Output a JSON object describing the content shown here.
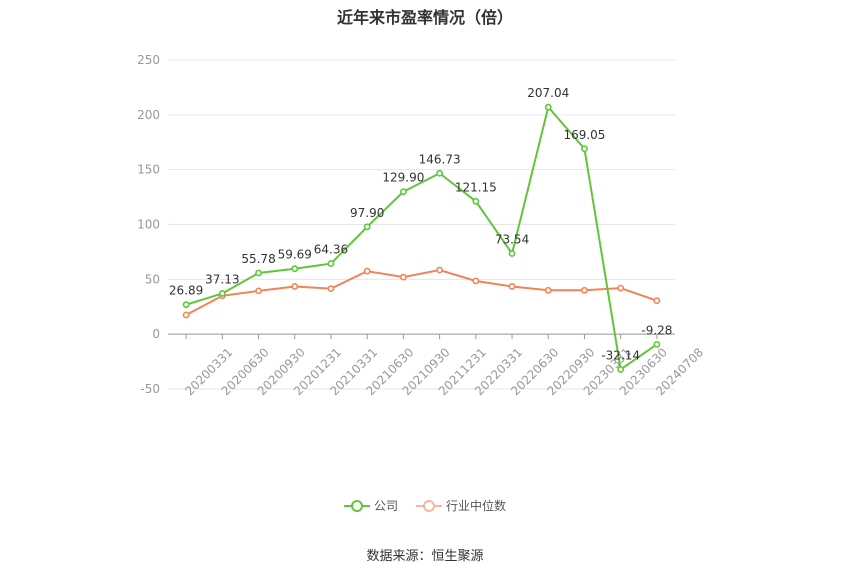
{
  "chart_data": {
    "type": "line",
    "title": "近年来市盈率情况（倍）",
    "x": [
      "20200331",
      "20200630",
      "20200930",
      "20201231",
      "20210331",
      "20210630",
      "20210930",
      "20211231",
      "20220331",
      "20220630",
      "20220930",
      "20230331",
      "20230630",
      "20240708"
    ],
    "series": [
      {
        "name": "公司",
        "color": "#5ec639",
        "values": [
          26.89,
          37.13,
          55.78,
          59.69,
          64.36,
          97.9,
          129.9,
          146.73,
          121.15,
          73.54,
          207.04,
          169.05,
          -32.14,
          -9.28
        ],
        "labels": [
          "26.89",
          "37.13",
          "55.78",
          "59.69",
          "64.36",
          "97.90",
          "129.90",
          "146.73",
          "121.15",
          "73.54",
          "207.04",
          "169.05",
          "-32.14",
          "-9.28"
        ]
      },
      {
        "name": "行业中位数",
        "color": "#f08454",
        "values": [
          17.5,
          35.0,
          39.5,
          43.5,
          41.5,
          57.5,
          52.0,
          58.5,
          48.5,
          43.5,
          40.0,
          40.0,
          42.0,
          30.5
        ]
      }
    ],
    "yticks": [
      "250",
      "200",
      "150",
      "100",
      "50",
      "0",
      "-50"
    ],
    "ylim": [
      -50,
      250
    ],
    "grid": true,
    "legend_position": "bottom-center"
  },
  "source": "数据来源：恒生聚源"
}
